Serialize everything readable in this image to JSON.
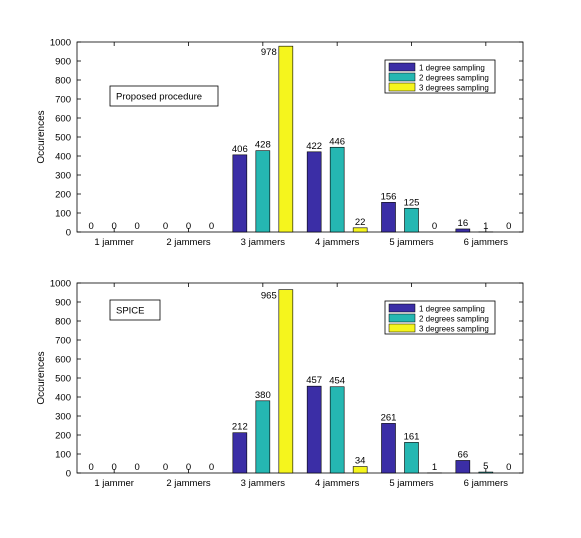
{
  "chart_data": [
    {
      "type": "bar",
      "annotation": "Proposed procedure",
      "ylabel": "Occurences",
      "xlabel": "",
      "ylim": [
        0,
        1000
      ],
      "yticks": [
        0,
        100,
        200,
        300,
        400,
        500,
        600,
        700,
        800,
        900,
        1000
      ],
      "categories": [
        "1 jammer",
        "2 jammers",
        "3 jammers",
        "4 jammers",
        "5 jammers",
        "6 jammers"
      ],
      "legend_position": "top-right",
      "series": [
        {
          "name": "1 degree sampling",
          "color": "#3b2ea6",
          "values": [
            0,
            0,
            406,
            422,
            156,
            16
          ]
        },
        {
          "name": "2 degrees sampling",
          "color": "#25b7b2",
          "values": [
            0,
            0,
            428,
            446,
            125,
            1
          ]
        },
        {
          "name": "3 degrees sampling",
          "color": "#f5f51d",
          "values": [
            0,
            0,
            978,
            22,
            0,
            0
          ]
        }
      ]
    },
    {
      "type": "bar",
      "annotation": "SPICE",
      "ylabel": "Occurences",
      "xlabel": "",
      "ylim": [
        0,
        1000
      ],
      "yticks": [
        0,
        100,
        200,
        300,
        400,
        500,
        600,
        700,
        800,
        900,
        1000
      ],
      "categories": [
        "1 jammer",
        "2 jammers",
        "3 jammers",
        "4 jammers",
        "5 jammers",
        "6 jammers"
      ],
      "legend_position": "top-right",
      "series": [
        {
          "name": "1 degree sampling",
          "color": "#3b2ea6",
          "values": [
            0,
            0,
            212,
            457,
            261,
            66
          ]
        },
        {
          "name": "2 degrees sampling",
          "color": "#25b7b2",
          "values": [
            0,
            0,
            380,
            454,
            161,
            5
          ]
        },
        {
          "name": "3 degrees sampling",
          "color": "#f5f51d",
          "values": [
            0,
            0,
            965,
            34,
            1,
            0
          ]
        }
      ]
    }
  ]
}
